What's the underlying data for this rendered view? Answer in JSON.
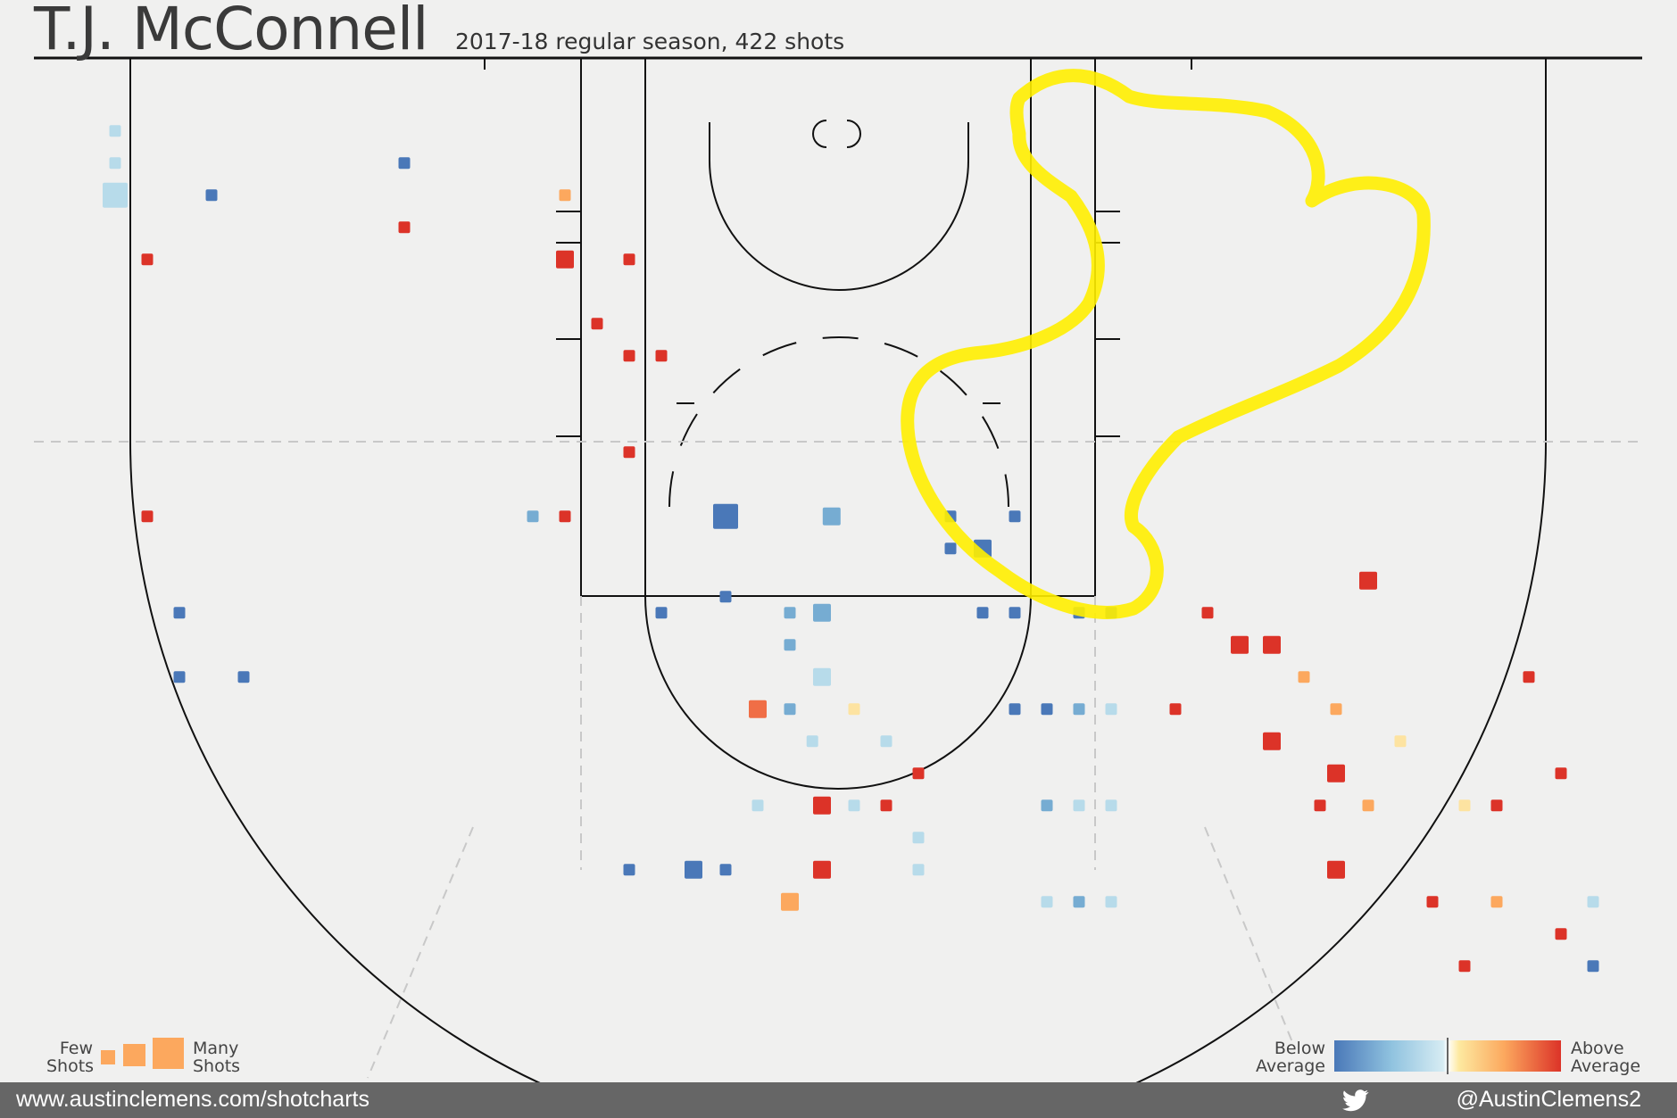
{
  "header": {
    "title": "T.J. McConnell",
    "subtitle": "2017-18 regular season, 422 shots"
  },
  "legend": {
    "few_shots": [
      "Few",
      "Shots"
    ],
    "many_shots": [
      "Many",
      "Shots"
    ],
    "below_average": [
      "Below",
      "Average"
    ],
    "above_average": [
      "Above",
      "Average"
    ],
    "color_scale": [
      "#4a78b8",
      "#8fc2df",
      "#d6ecf3",
      "#ffffff",
      "#fde9a0",
      "#fca85e",
      "#dc3328"
    ]
  },
  "footer": {
    "url": "www.austinclemens.com/shotcharts",
    "handle": "@AustinClemens2",
    "icon": "twitter-bird-icon"
  },
  "annotation": {
    "description": "yellow hand-drawn highlight outline",
    "color": "#ffee00"
  },
  "chart_data": {
    "type": "scatter",
    "title": "T.J. McConnell",
    "subtitle": "2017-18 regular season, 422 shots",
    "x_range": [
      -250,
      250
    ],
    "y_range": [
      -50,
      300
    ],
    "encoding": {
      "x": "court x (1 unit = 1/10 ft)",
      "y": "distance from baseline (1 unit = 1/10 ft)",
      "size": "shot frequency 1-5",
      "color": "shooting vs league average, -1 below to +1 above"
    },
    "shots": [
      [
        -225,
        22,
        1,
        -0.35
      ],
      [
        -225,
        32,
        1,
        -0.3
      ],
      [
        -225,
        42,
        3,
        -0.3
      ],
      [
        -195,
        42,
        1,
        -0.95
      ],
      [
        -215,
        62,
        1,
        0.9
      ],
      [
        -135,
        32,
        1,
        -0.95
      ],
      [
        -135,
        52,
        1,
        0.9
      ],
      [
        -85,
        42,
        1,
        0.45
      ],
      [
        -85,
        62,
        2,
        0.9
      ],
      [
        -75,
        82,
        1,
        0.9
      ],
      [
        -65,
        62,
        1,
        0.9
      ],
      [
        -65,
        122,
        1,
        0.9
      ],
      [
        -65,
        92,
        1,
        0.9
      ],
      [
        -55,
        92,
        1,
        0.9
      ],
      [
        -95,
        142,
        1,
        -0.5
      ],
      [
        -85,
        142,
        1,
        0.9
      ],
      [
        -35,
        142,
        3,
        -0.9
      ],
      [
        -35,
        167,
        1,
        -0.9
      ],
      [
        -55,
        172,
        1,
        -0.9
      ],
      [
        -25,
        202,
        2,
        0.8
      ],
      [
        -15,
        202,
        1,
        -0.5
      ],
      [
        -15,
        182,
        1,
        -0.5
      ],
      [
        -15,
        172,
        1,
        -0.5
      ],
      [
        -25,
        232,
        1,
        -0.3
      ],
      [
        -35,
        252,
        1,
        -0.9
      ],
      [
        -5,
        232,
        2,
        0.9
      ],
      [
        -5,
        252,
        2,
        0.9
      ],
      [
        -15,
        262,
        2,
        0.5
      ],
      [
        -45,
        252,
        2,
        -0.9
      ],
      [
        -65,
        252,
        1,
        -0.9
      ],
      [
        -215,
        142,
        1,
        0.9
      ],
      [
        -205,
        172,
        1,
        -0.95
      ],
      [
        -205,
        192,
        1,
        -0.95
      ],
      [
        -185,
        192,
        1,
        -0.95
      ],
      [
        -2,
        142,
        2,
        -0.6
      ],
      [
        -5,
        172,
        2,
        -0.6
      ],
      [
        -5,
        192,
        2,
        -0.3
      ],
      [
        -8,
        212,
        1,
        -0.3
      ],
      [
        5,
        202,
        1,
        0.3
      ],
      [
        5,
        232,
        1,
        -0.3
      ],
      [
        15,
        212,
        1,
        -0.3
      ],
      [
        15,
        232,
        1,
        0.9
      ],
      [
        25,
        222,
        1,
        0.9
      ],
      [
        25,
        242,
        1,
        -0.3
      ],
      [
        25,
        252,
        1,
        -0.3
      ],
      [
        35,
        142,
        1,
        -0.9
      ],
      [
        35,
        152,
        1,
        -0.9
      ],
      [
        45,
        152,
        2,
        -0.95
      ],
      [
        55,
        142,
        1,
        -0.95
      ],
      [
        45,
        172,
        1,
        -0.95
      ],
      [
        55,
        172,
        1,
        -0.95
      ],
      [
        55,
        202,
        1,
        -0.95
      ],
      [
        65,
        202,
        1,
        -0.95
      ],
      [
        85,
        172,
        1,
        -0.95
      ],
      [
        75,
        172,
        1,
        -0.95
      ],
      [
        65,
        232,
        1,
        -0.5
      ],
      [
        75,
        232,
        1,
        -0.3
      ],
      [
        85,
        232,
        1,
        -0.3
      ],
      [
        75,
        202,
        1,
        -0.5
      ],
      [
        85,
        202,
        1,
        -0.3
      ],
      [
        65,
        262,
        1,
        -0.3
      ],
      [
        75,
        262,
        1,
        -0.5
      ],
      [
        85,
        262,
        1,
        -0.3
      ],
      [
        105,
        202,
        1,
        0.95
      ],
      [
        115,
        172,
        1,
        0.9
      ],
      [
        125,
        182,
        2,
        0.9
      ],
      [
        135,
        182,
        2,
        0.9
      ],
      [
        135,
        212,
        2,
        0.9
      ],
      [
        145,
        192,
        1,
        0.5
      ],
      [
        155,
        202,
        1,
        0.6
      ],
      [
        165,
        162,
        2,
        0.9
      ],
      [
        155,
        222,
        2,
        0.9
      ],
      [
        150,
        232,
        1,
        0.9
      ],
      [
        155,
        252,
        2,
        0.9
      ],
      [
        165,
        232,
        1,
        0.4
      ],
      [
        175,
        212,
        1,
        0.3
      ],
      [
        195,
        232,
        1,
        0.3
      ],
      [
        205,
        232,
        1,
        0.9
      ],
      [
        215,
        192,
        1,
        0.9
      ],
      [
        225,
        222,
        1,
        0.9
      ],
      [
        235,
        282,
        1,
        -0.95
      ],
      [
        235,
        262,
        1,
        -0.3
      ],
      [
        225,
        272,
        1,
        0.9
      ],
      [
        205,
        262,
        1,
        0.6
      ],
      [
        195,
        282,
        1,
        0.9
      ],
      [
        185,
        262,
        1,
        0.9
      ]
    ],
    "xlabel": "",
    "ylabel": ""
  }
}
